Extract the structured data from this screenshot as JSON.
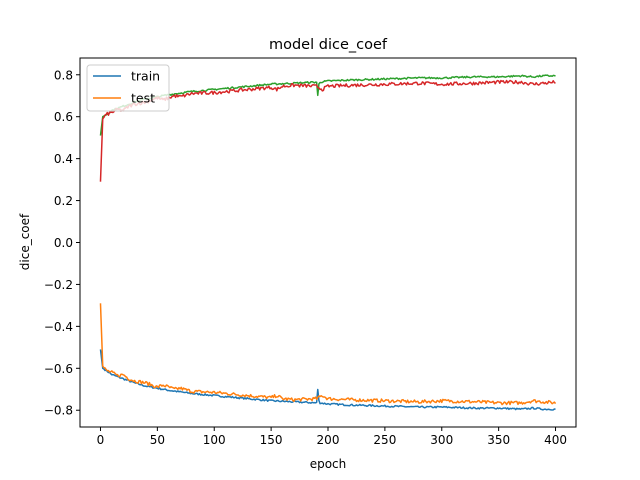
{
  "chart_data": {
    "type": "line",
    "title": "model dice_coef",
    "xlabel": "epoch",
    "ylabel": "dice_coef",
    "xlim": [
      -18,
      418
    ],
    "ylim": [
      -0.88,
      0.88
    ],
    "xticks": [
      0,
      50,
      100,
      150,
      200,
      250,
      300,
      350,
      400
    ],
    "yticks": [
      -0.8,
      -0.6,
      -0.4,
      -0.2,
      0.0,
      0.2,
      0.4,
      0.6,
      0.8
    ],
    "xtick_labels": [
      "0",
      "50",
      "100",
      "150",
      "200",
      "250",
      "300",
      "350",
      "400"
    ],
    "ytick_labels": [
      "−0.8",
      "−0.6",
      "−0.4",
      "−0.2",
      "0.0",
      "0.2",
      "0.4",
      "0.6",
      "0.8"
    ],
    "legend_placement": "upper-left",
    "grid": false,
    "colors": {
      "train": "#1f77b4",
      "test": "#ff7f0e",
      "series3": "#2ca02c",
      "series4": "#d62728"
    },
    "series": [
      {
        "name": "train",
        "x": [
          0,
          2,
          5,
          10,
          15,
          20,
          30,
          40,
          50,
          60,
          80,
          100,
          120,
          150,
          170,
          190,
          191,
          192,
          193,
          200,
          220,
          250,
          280,
          300,
          330,
          350,
          370,
          380,
          390,
          400
        ],
        "values": [
          -0.51,
          -0.6,
          -0.61,
          -0.63,
          -0.64,
          -0.65,
          -0.67,
          -0.685,
          -0.695,
          -0.705,
          -0.72,
          -0.73,
          -0.74,
          -0.755,
          -0.76,
          -0.765,
          -0.7,
          -0.755,
          -0.765,
          -0.77,
          -0.775,
          -0.78,
          -0.785,
          -0.785,
          -0.79,
          -0.79,
          -0.795,
          -0.79,
          -0.795,
          -0.795
        ]
      },
      {
        "name": "test",
        "x": [
          0,
          2,
          5,
          10,
          15,
          20,
          25,
          30,
          40,
          50,
          55,
          60,
          65,
          70,
          80,
          100,
          120,
          150,
          155,
          160,
          170,
          190,
          195,
          200,
          220,
          250,
          280,
          300,
          330,
          350,
          370,
          380,
          390,
          400
        ],
        "values": [
          -0.29,
          -0.59,
          -0.61,
          -0.62,
          -0.635,
          -0.63,
          -0.65,
          -0.66,
          -0.67,
          -0.69,
          -0.68,
          -0.69,
          -0.7,
          -0.695,
          -0.71,
          -0.715,
          -0.725,
          -0.74,
          -0.73,
          -0.745,
          -0.75,
          -0.745,
          -0.73,
          -0.745,
          -0.75,
          -0.755,
          -0.76,
          -0.755,
          -0.76,
          -0.765,
          -0.765,
          -0.755,
          -0.76,
          -0.765
        ]
      },
      {
        "name": "",
        "x": [
          0,
          2,
          5,
          10,
          15,
          20,
          30,
          40,
          50,
          60,
          80,
          100,
          120,
          150,
          170,
          190,
          191,
          192,
          193,
          200,
          220,
          250,
          280,
          300,
          330,
          350,
          370,
          380,
          390,
          400
        ],
        "values": [
          0.51,
          0.6,
          0.61,
          0.63,
          0.64,
          0.65,
          0.67,
          0.685,
          0.695,
          0.705,
          0.72,
          0.73,
          0.74,
          0.755,
          0.76,
          0.765,
          0.7,
          0.755,
          0.765,
          0.77,
          0.775,
          0.78,
          0.785,
          0.785,
          0.79,
          0.79,
          0.795,
          0.79,
          0.795,
          0.795
        ]
      },
      {
        "name": "",
        "x": [
          0,
          2,
          5,
          10,
          15,
          20,
          25,
          30,
          40,
          50,
          55,
          60,
          65,
          70,
          80,
          100,
          120,
          150,
          155,
          160,
          170,
          190,
          195,
          200,
          220,
          250,
          280,
          300,
          330,
          350,
          370,
          380,
          390,
          400
        ],
        "values": [
          0.29,
          0.59,
          0.61,
          0.62,
          0.635,
          0.63,
          0.65,
          0.66,
          0.67,
          0.69,
          0.68,
          0.69,
          0.7,
          0.695,
          0.71,
          0.715,
          0.725,
          0.74,
          0.73,
          0.745,
          0.75,
          0.745,
          0.73,
          0.745,
          0.75,
          0.755,
          0.76,
          0.755,
          0.76,
          0.765,
          0.765,
          0.755,
          0.76,
          0.765
        ]
      }
    ]
  }
}
